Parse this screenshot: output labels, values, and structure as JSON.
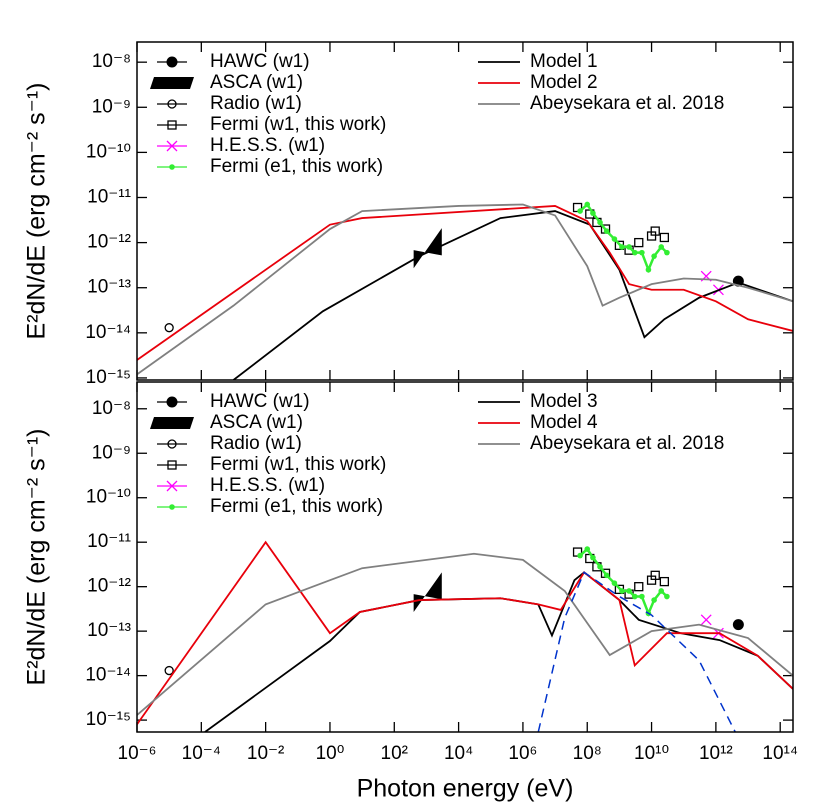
{
  "chart_data": [
    {
      "type": "line",
      "log_x": true,
      "log_y": true,
      "ylabel": "E²dN/dE (erg cm⁻² s⁻¹)",
      "xlim": [
        1e-06,
        250000000000000.0
      ],
      "ylim": [
        9e-16,
        2.8e-08
      ],
      "xticks": [
        1e-06,
        0.0001,
        0.01,
        1,
        100,
        10000.0,
        1000000.0,
        100000000.0,
        10000000000.0,
        1000000000000.0,
        100000000000000.0
      ],
      "yticks": [
        {
          "value": 1e-08,
          "label": "10⁻⁸"
        },
        {
          "value": 1e-09,
          "label": "10⁻⁹"
        },
        {
          "value": 1e-10,
          "label": "10⁻¹⁰"
        },
        {
          "value": 1e-11,
          "label": "10⁻¹¹"
        },
        {
          "value": 1e-12,
          "label": "10⁻¹²"
        },
        {
          "value": 1e-13,
          "label": "10⁻¹³"
        },
        {
          "value": 1e-14,
          "label": "10⁻¹⁴"
        },
        {
          "value": 1e-15,
          "label": "10⁻¹⁵"
        }
      ],
      "series": [
        {
          "name": "HAWC (w1)",
          "color": "#000000",
          "style": "circle-filled",
          "x": [
            5000000000000.0
          ],
          "values": [
            1.4e-13
          ]
        },
        {
          "name": "ASCA (w1)",
          "color": "#000000",
          "style": "bowtie",
          "x": [
            400,
            3000
          ],
          "low": [
            2.7e-13,
            5.2e-13
          ],
          "high": [
            6.8e-13,
            2.1e-12
          ]
        },
        {
          "name": "Radio (w1)",
          "color": "#000000",
          "style": "circle-open",
          "x": [
            1e-05
          ],
          "values": [
            1.3e-14
          ]
        },
        {
          "name": "Fermi (w1, this work)",
          "color": "#000000",
          "style": "square-open",
          "x": [
            50000000.0,
            120000000.0,
            200000000.0,
            370000000.0,
            1000000000.0,
            2000000000.0,
            4000000000.0,
            10000000000.0,
            13000000000.0,
            25000000000.0
          ],
          "values": [
            6e-12,
            4.3e-12,
            2.8e-12,
            2e-12,
            8.7e-13,
            6.8e-13,
            1e-12,
            1.4e-12,
            1.8e-12,
            1.3e-12
          ]
        },
        {
          "name": "H.E.S.S. (w1)",
          "color": "#ff00ff",
          "style": "cross",
          "x": [
            500000000000.0,
            1200000000000.0
          ],
          "values": [
            1.8e-13,
            9e-14
          ]
        },
        {
          "name": "Fermi (e1, this work)",
          "color": "#33ee33",
          "style": "dot-line",
          "x": [
            60000000.0,
            100000000.0,
            150000000.0,
            250000000.0,
            400000000.0,
            700000000.0,
            1200000000.0,
            2000000000.0,
            3000000000.0,
            5000000000.0,
            8000000000.0,
            12000000000.0,
            20000000000.0,
            30000000000.0
          ],
          "values": [
            5e-12,
            7e-12,
            4.5e-12,
            2.8e-12,
            1.8e-12,
            1.2e-12,
            8e-13,
            8e-13,
            6e-13,
            6e-13,
            2.5e-13,
            5e-13,
            8e-13,
            6e-13
          ]
        },
        {
          "name": "Model 1",
          "color": "#000000",
          "style": "line",
          "x": [
            0.001,
            0.6,
            600,
            200000.0,
            10000000.0,
            120000000.0,
            1000000000.0,
            6000000000.0,
            25000000000.0,
            300000000000.0,
            5000000000000.0,
            250000000000000.0
          ],
          "values": [
            9e-16,
            3e-14,
            5e-13,
            3.5e-12,
            5e-12,
            2.5e-12,
            2.5e-13,
            8e-15,
            2e-14,
            6e-14,
            1.3e-13,
            5e-14
          ]
        },
        {
          "name": "Model 2",
          "color": "#e8000b",
          "style": "line",
          "x": [
            1e-06,
            1,
            10,
            10000000.0,
            100000000.0,
            500000000.0,
            2000000000.0,
            10000000000.0,
            100000000000.0,
            1000000000000.0,
            10000000000000.0,
            250000000000000.0
          ],
          "values": [
            2.5e-15,
            2.5e-12,
            3.5e-12,
            6.5e-12,
            3e-12,
            6e-13,
            1.2e-13,
            9e-14,
            9e-14,
            5e-14,
            2e-14,
            1.1e-14
          ]
        },
        {
          "name": "Abeysekara et al. 2018",
          "color": "#808080",
          "style": "line",
          "x": [
            1e-06,
            0.001,
            1,
            10,
            10000.0,
            1000000.0,
            10000000.0,
            100000000.0,
            300000000.0,
            1000000000.0,
            10000000000.0,
            100000000000.0,
            1000000000000.0,
            10000000000000.0,
            250000000000000.0
          ],
          "values": [
            1.2e-15,
            4e-14,
            2e-12,
            5e-12,
            6.5e-12,
            7e-12,
            4e-12,
            3e-13,
            4e-14,
            6e-14,
            1.2e-13,
            1.6e-13,
            1.5e-13,
            1e-13,
            5e-14
          ]
        }
      ]
    },
    {
      "type": "line",
      "log_x": true,
      "log_y": true,
      "ylabel": "E²dN/dE (erg cm⁻² s⁻¹)",
      "xlabel": "Photon energy (eV)",
      "xlim": [
        1e-06,
        250000000000000.0
      ],
      "ylim": [
        5.4e-16,
        4e-08
      ],
      "xticks": [
        {
          "value": 1e-06,
          "label": "10⁻⁶"
        },
        {
          "value": 0.0001,
          "label": "10⁻⁴"
        },
        {
          "value": 0.01,
          "label": "10⁻²"
        },
        {
          "value": 1,
          "label": "10⁰"
        },
        {
          "value": 100,
          "label": "10²"
        },
        {
          "value": 10000.0,
          "label": "10⁴"
        },
        {
          "value": 1000000.0,
          "label": "10⁶"
        },
        {
          "value": 100000000.0,
          "label": "10⁸"
        },
        {
          "value": 10000000000.0,
          "label": "10¹⁰"
        },
        {
          "value": 1000000000000.0,
          "label": "10¹²"
        },
        {
          "value": 100000000000000.0,
          "label": "10¹⁴"
        }
      ],
      "yticks": [
        {
          "value": 1e-08,
          "label": "10⁻⁸"
        },
        {
          "value": 1e-09,
          "label": "10⁻⁹"
        },
        {
          "value": 1e-10,
          "label": "10⁻¹⁰"
        },
        {
          "value": 1e-11,
          "label": "10⁻¹¹"
        },
        {
          "value": 1e-12,
          "label": "10⁻¹²"
        },
        {
          "value": 1e-13,
          "label": "10⁻¹³"
        },
        {
          "value": 1e-14,
          "label": "10⁻¹⁴"
        },
        {
          "value": 1e-15,
          "label": "10⁻¹⁵"
        }
      ],
      "series": [
        {
          "name": "HAWC (w1)",
          "color": "#000000",
          "style": "circle-filled",
          "x": [
            5000000000000.0
          ],
          "values": [
            1.4e-13
          ]
        },
        {
          "name": "ASCA (w1)",
          "color": "#000000",
          "style": "bowtie",
          "x": [
            400,
            3000
          ],
          "low": [
            2.7e-13,
            5.2e-13
          ],
          "high": [
            6.8e-13,
            2.1e-12
          ]
        },
        {
          "name": "Radio (w1)",
          "color": "#000000",
          "style": "circle-open",
          "x": [
            1e-05
          ],
          "values": [
            1.3e-14
          ]
        },
        {
          "name": "Fermi (w1, this work)",
          "color": "#000000",
          "style": "square-open",
          "x": [
            50000000.0,
            120000000.0,
            200000000.0,
            370000000.0,
            1000000000.0,
            2000000000.0,
            4000000000.0,
            10000000000.0,
            13000000000.0,
            25000000000.0
          ],
          "values": [
            6e-12,
            4.3e-12,
            2.8e-12,
            2e-12,
            8.7e-13,
            6.8e-13,
            1e-12,
            1.4e-12,
            1.8e-12,
            1.3e-12
          ]
        },
        {
          "name": "H.E.S.S. (w1)",
          "color": "#ff00ff",
          "style": "cross",
          "x": [
            500000000000.0,
            1200000000000.0
          ],
          "values": [
            1.8e-13,
            9e-14
          ]
        },
        {
          "name": "Fermi (e1, this work)",
          "color": "#33ee33",
          "style": "dot-line",
          "x": [
            60000000.0,
            100000000.0,
            150000000.0,
            250000000.0,
            400000000.0,
            700000000.0,
            1200000000.0,
            2000000000.0,
            3000000000.0,
            5000000000.0,
            8000000000.0,
            12000000000.0,
            20000000000.0,
            30000000000.0
          ],
          "values": [
            5e-12,
            7e-12,
            4.5e-12,
            2.8e-12,
            1.8e-12,
            1.2e-12,
            8e-13,
            8e-13,
            6e-13,
            6e-13,
            2.5e-13,
            5e-13,
            8e-13,
            6e-13
          ]
        },
        {
          "name": "Model 3",
          "color": "#000000",
          "style": "line",
          "x": [
            0.00013,
            1,
            8.5,
            600,
            200000.0,
            3000000.0,
            8000000.0,
            40000000.0,
            80000000.0,
            1000000000.0,
            4000000000.0,
            80000000000.0,
            1300000000000.0,
            20000000000000.0,
            250000000000000.0
          ],
          "values": [
            5.4e-16,
            6e-14,
            2.7e-13,
            5e-13,
            5.5e-13,
            4e-13,
            8e-14,
            1.4e-12,
            2.1e-12,
            5e-13,
            1.8e-13,
            9e-14,
            6.3e-14,
            2.8e-14,
            5e-15
          ]
        },
        {
          "name": "Model 4",
          "color": "#e8000b",
          "style": "line",
          "x": [
            1e-06,
            0.01,
            1,
            8.5,
            600,
            200000.0,
            3000000.0,
            15000000.0,
            80000000.0,
            1000000000.0,
            3000000000.0,
            30000000000.0,
            1300000000000.0,
            20000000000000.0,
            250000000000000.0
          ],
          "values": [
            8e-16,
            1e-11,
            9e-14,
            2.7e-13,
            5e-13,
            5.5e-13,
            4e-13,
            3e-13,
            2.1e-12,
            5e-13,
            1.7e-14,
            9e-14,
            9e-14,
            2.8e-14,
            5e-15
          ]
        },
        {
          "name": "Abeysekara et al. 2018",
          "color": "#808080",
          "style": "line",
          "x": [
            1e-06,
            0.01,
            1,
            10,
            30000.0,
            1000000.0,
            20000000.0,
            500000000.0,
            10000000000.0,
            300000000000.0,
            10000000000000.0,
            250000000000000.0
          ],
          "values": [
            1.3e-15,
            4e-13,
            1.4e-12,
            2.6e-12,
            5.5e-12,
            4e-12,
            8e-13,
            2.9e-14,
            1e-13,
            1.4e-13,
            7e-14,
            1e-14
          ]
        },
        {
          "color": "#0033cc",
          "style": "dash",
          "x": [
            3000000.0,
            20000000.0,
            80000000.0,
            1000000000.0,
            10000000000.0,
            300000000000.0,
            4000000000000.0
          ],
          "values": [
            5.4e-16,
            2e-13,
            2.1e-12,
            6e-13,
            2.3e-13,
            2.2e-14,
            5.4e-16
          ]
        }
      ]
    }
  ]
}
